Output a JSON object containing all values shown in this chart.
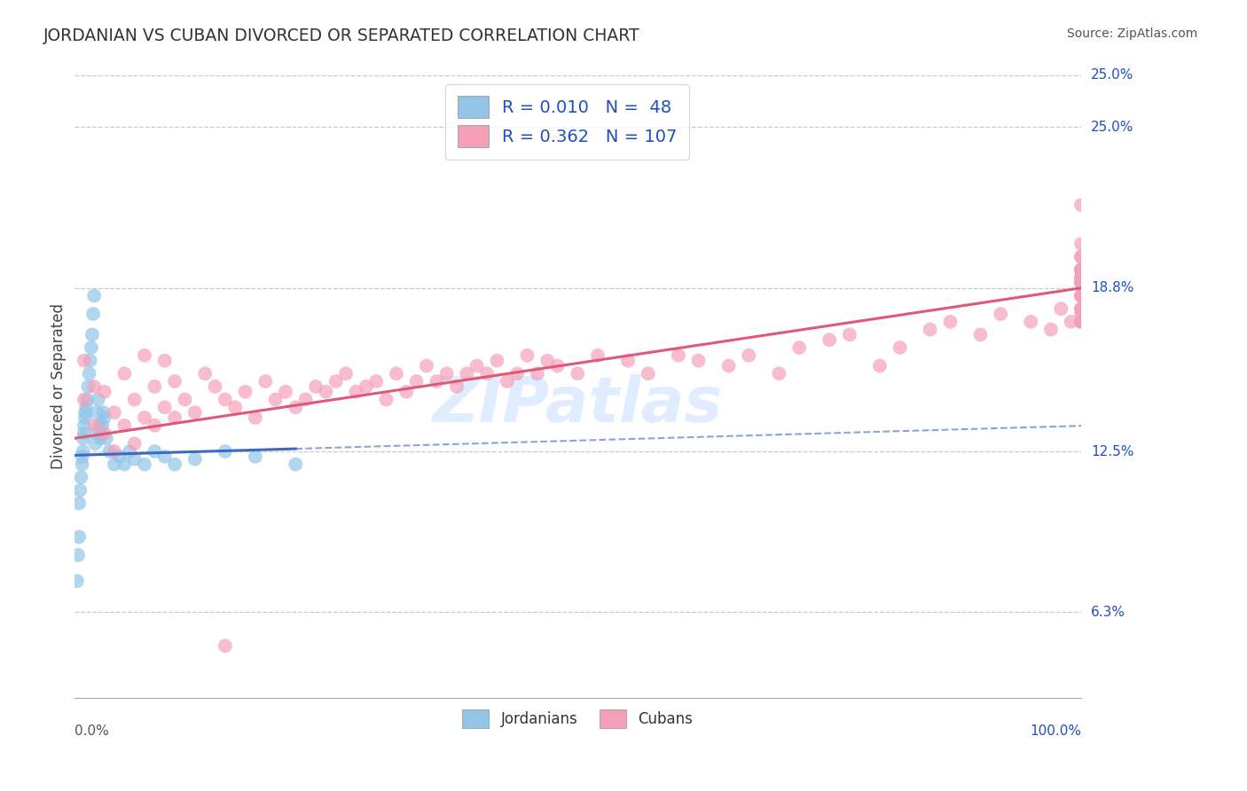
{
  "title": "JORDANIAN VS CUBAN DIVORCED OR SEPARATED CORRELATION CHART",
  "source_text": "Source: ZipAtlas.com",
  "ylabel": "Divorced or Separated",
  "x_min": 0.0,
  "x_max": 100.0,
  "y_min": 3.0,
  "y_max": 27.0,
  "y_ticks": [
    6.3,
    12.5,
    18.8,
    25.0
  ],
  "y_tick_labels": [
    "6.3%",
    "12.5%",
    "18.8%",
    "25.0%"
  ],
  "jordanian_color": "#92C5E8",
  "cuban_color": "#F4A0B8",
  "jordanian_line_color": "#3A6BBF",
  "cuban_line_color": "#E05878",
  "background_color": "#FFFFFF",
  "grid_color": "#BBBBBB",
  "legend_R_jordanian": "0.010",
  "legend_N_jordanian": "48",
  "legend_R_cuban": "0.362",
  "legend_N_cuban": "107",
  "legend_text_color": "#1F4FBF",
  "title_color": "#333333",
  "watermark": "ZIPatlas",
  "jordanian_x": [
    0.3,
    0.4,
    0.5,
    0.5,
    0.6,
    0.7,
    0.8,
    0.8,
    0.9,
    0.9,
    1.0,
    1.0,
    1.1,
    1.1,
    1.2,
    1.3,
    1.4,
    1.5,
    1.6,
    1.7,
    1.8,
    1.9,
    2.0,
    2.1,
    2.2,
    2.3,
    2.4,
    2.5,
    2.6,
    2.7,
    2.8,
    2.9,
    3.0,
    3.2,
    3.5,
    4.0,
    4.5,
    5.0,
    5.5,
    6.0,
    7.0,
    8.0,
    9.0,
    10.0,
    12.0,
    15.0,
    18.0,
    22.0
  ],
  "jordanian_y": [
    7.5,
    8.5,
    9.2,
    10.5,
    11.0,
    11.5,
    12.0,
    12.3,
    12.5,
    13.0,
    13.2,
    13.5,
    13.8,
    14.0,
    14.2,
    14.5,
    15.0,
    15.5,
    16.0,
    16.5,
    17.0,
    17.8,
    18.5,
    12.8,
    13.2,
    14.0,
    14.5,
    13.5,
    13.0,
    13.2,
    13.5,
    14.0,
    13.8,
    13.0,
    12.5,
    12.0,
    12.3,
    12.0,
    12.5,
    12.2,
    12.0,
    12.5,
    12.3,
    12.0,
    12.2,
    12.5,
    12.3,
    12.0
  ],
  "cuban_x": [
    1,
    1,
    2,
    2,
    3,
    3,
    4,
    4,
    5,
    5,
    6,
    6,
    7,
    7,
    8,
    8,
    9,
    9,
    10,
    10,
    11,
    12,
    13,
    14,
    15,
    15,
    16,
    17,
    18,
    19,
    20,
    21,
    22,
    23,
    24,
    25,
    26,
    27,
    28,
    29,
    30,
    31,
    32,
    33,
    34,
    35,
    36,
    37,
    38,
    39,
    40,
    41,
    42,
    43,
    44,
    45,
    46,
    47,
    48,
    50,
    52,
    55,
    57,
    60,
    62,
    65,
    67,
    70,
    72,
    75,
    77,
    80,
    82,
    85,
    87,
    90,
    92,
    95,
    97,
    98,
    99,
    100,
    100,
    100,
    100,
    100,
    100,
    100,
    100,
    100,
    100,
    100,
    100,
    100,
    100,
    100,
    100,
    100,
    100,
    100,
    100,
    100,
    100,
    100,
    100,
    100,
    100
  ],
  "cuban_y": [
    14.5,
    16.0,
    13.5,
    15.0,
    13.2,
    14.8,
    12.5,
    14.0,
    13.5,
    15.5,
    12.8,
    14.5,
    13.8,
    16.2,
    13.5,
    15.0,
    14.2,
    16.0,
    13.8,
    15.2,
    14.5,
    14.0,
    15.5,
    15.0,
    5.0,
    14.5,
    14.2,
    14.8,
    13.8,
    15.2,
    14.5,
    14.8,
    14.2,
    14.5,
    15.0,
    14.8,
    15.2,
    15.5,
    14.8,
    15.0,
    15.2,
    14.5,
    15.5,
    14.8,
    15.2,
    15.8,
    15.2,
    15.5,
    15.0,
    15.5,
    15.8,
    15.5,
    16.0,
    15.2,
    15.5,
    16.2,
    15.5,
    16.0,
    15.8,
    15.5,
    16.2,
    16.0,
    15.5,
    16.2,
    16.0,
    15.8,
    16.2,
    15.5,
    16.5,
    16.8,
    17.0,
    15.8,
    16.5,
    17.2,
    17.5,
    17.0,
    17.8,
    17.5,
    17.2,
    18.0,
    17.5,
    19.0,
    18.5,
    17.8,
    19.2,
    18.0,
    19.5,
    17.5,
    19.0,
    18.5,
    18.0,
    19.5,
    18.0,
    19.2,
    17.5,
    19.5,
    18.5,
    20.0,
    17.5,
    19.2,
    19.5,
    20.5,
    22.0,
    17.5,
    19.5,
    19.0,
    20.0
  ],
  "jordanian_trend_x": [
    0.0,
    22.0
  ],
  "jordanian_trend_y": [
    12.35,
    12.6
  ],
  "cuban_trend_x": [
    0.0,
    100.0
  ],
  "cuban_trend_y": [
    13.0,
    18.8
  ]
}
